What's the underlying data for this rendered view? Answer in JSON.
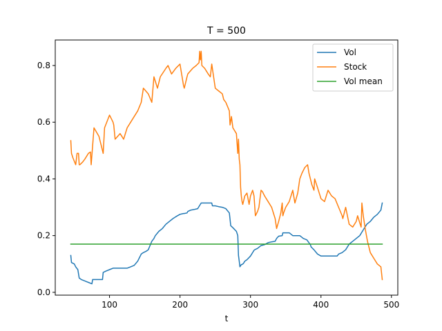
{
  "chart_data": {
    "type": "line",
    "title": "T = 500",
    "xlabel": "t",
    "ylabel": "",
    "xlim": [
      23,
      509
    ],
    "ylim": [
      -0.01,
      0.89
    ],
    "xticks": [
      100,
      200,
      300,
      400,
      500
    ],
    "yticks": [
      0.0,
      0.2,
      0.4,
      0.6,
      0.8
    ],
    "xtick_labels": [
      "100",
      "200",
      "300",
      "400",
      "500"
    ],
    "ytick_labels": [
      "0.0",
      "0.2",
      "0.4",
      "0.6",
      "0.8"
    ],
    "legend_position": "top-right",
    "grid": false,
    "series": [
      {
        "name": "Vol",
        "color": "#1f77b4",
        "x": [
          45,
          46,
          50,
          52,
          55,
          57,
          60,
          65,
          70,
          75,
          76,
          80,
          85,
          90,
          91,
          95,
          100,
          105,
          110,
          120,
          125,
          130,
          135,
          140,
          145,
          148,
          152,
          155,
          160,
          163,
          165,
          170,
          175,
          180,
          185,
          190,
          195,
          200,
          205,
          206,
          210,
          211,
          215,
          220,
          225,
          230,
          231,
          235,
          240,
          245,
          246,
          250,
          255,
          260,
          265,
          270,
          272,
          275,
          280,
          282,
          283,
          284,
          285,
          287,
          288,
          290,
          292,
          295,
          300,
          305,
          306,
          310,
          315,
          320,
          325,
          330,
          335,
          337,
          340,
          345,
          346,
          350,
          355,
          360,
          365,
          370,
          375,
          380,
          385,
          386,
          390,
          395,
          400,
          405,
          410,
          415,
          420,
          423,
          425,
          430,
          435,
          440,
          445,
          450,
          455,
          460,
          465,
          470,
          475,
          480,
          485,
          487
        ],
        "values": [
          0.13,
          0.105,
          0.1,
          0.09,
          0.08,
          0.05,
          0.045,
          0.04,
          0.035,
          0.03,
          0.045,
          0.045,
          0.045,
          0.045,
          0.07,
          0.075,
          0.08,
          0.085,
          0.085,
          0.085,
          0.085,
          0.09,
          0.095,
          0.11,
          0.135,
          0.14,
          0.145,
          0.15,
          0.18,
          0.19,
          0.2,
          0.215,
          0.225,
          0.24,
          0.25,
          0.26,
          0.268,
          0.275,
          0.278,
          0.278,
          0.28,
          0.285,
          0.29,
          0.292,
          0.295,
          0.315,
          0.315,
          0.315,
          0.315,
          0.315,
          0.305,
          0.305,
          0.302,
          0.3,
          0.295,
          0.28,
          0.235,
          0.228,
          0.215,
          0.2,
          0.13,
          0.11,
          0.09,
          0.098,
          0.098,
          0.102,
          0.11,
          0.115,
          0.128,
          0.148,
          0.15,
          0.155,
          0.165,
          0.168,
          0.175,
          0.178,
          0.18,
          0.19,
          0.198,
          0.2,
          0.21,
          0.21,
          0.21,
          0.2,
          0.2,
          0.2,
          0.19,
          0.185,
          0.168,
          0.16,
          0.15,
          0.135,
          0.128,
          0.128,
          0.128,
          0.128,
          0.128,
          0.128,
          0.135,
          0.14,
          0.15,
          0.17,
          0.18,
          0.19,
          0.2,
          0.22,
          0.24,
          0.25,
          0.265,
          0.275,
          0.29,
          0.315
        ]
      },
      {
        "name": "Stock",
        "color": "#ff7f0e",
        "x": [
          45,
          46,
          48,
          52,
          54,
          56,
          57,
          58,
          62,
          65,
          70,
          73,
          74,
          78,
          85,
          90,
          91,
          93,
          100,
          105,
          106,
          108,
          115,
          120,
          125,
          130,
          140,
          145,
          148,
          155,
          160,
          163,
          168,
          172,
          180,
          183,
          188,
          194,
          200,
          205,
          206,
          210,
          211,
          218,
          223,
          227,
          228,
          229,
          230,
          231,
          235,
          240,
          243,
          245,
          250,
          255,
          260,
          262,
          265,
          270,
          271,
          273,
          275,
          280,
          282,
          283,
          284,
          285,
          286,
          287,
          288,
          289,
          292,
          295,
          298,
          300,
          303,
          305,
          307,
          310,
          312,
          315,
          317,
          320,
          325,
          330,
          335,
          337,
          340,
          343,
          345,
          346,
          347,
          350,
          355,
          360,
          363,
          367,
          370,
          373,
          377,
          381,
          383,
          387,
          390,
          391,
          395,
          400,
          405,
          410,
          415,
          420,
          425,
          430,
          431,
          435,
          440,
          445,
          450,
          452,
          455,
          457,
          458,
          460,
          463,
          466,
          470,
          475,
          480,
          485,
          487
        ],
        "values": [
          0.535,
          0.49,
          0.475,
          0.45,
          0.49,
          0.49,
          0.45,
          0.45,
          0.46,
          0.47,
          0.49,
          0.495,
          0.45,
          0.58,
          0.55,
          0.5,
          0.49,
          0.58,
          0.625,
          0.6,
          0.59,
          0.54,
          0.56,
          0.54,
          0.58,
          0.6,
          0.64,
          0.67,
          0.72,
          0.7,
          0.67,
          0.76,
          0.72,
          0.76,
          0.79,
          0.8,
          0.77,
          0.79,
          0.805,
          0.73,
          0.72,
          0.76,
          0.77,
          0.79,
          0.8,
          0.81,
          0.85,
          0.82,
          0.85,
          0.8,
          0.79,
          0.77,
          0.76,
          0.805,
          0.72,
          0.71,
          0.7,
          0.68,
          0.67,
          0.64,
          0.59,
          0.62,
          0.58,
          0.56,
          0.49,
          0.54,
          0.47,
          0.45,
          0.37,
          0.34,
          0.32,
          0.31,
          0.34,
          0.35,
          0.31,
          0.34,
          0.36,
          0.34,
          0.27,
          0.285,
          0.3,
          0.36,
          0.355,
          0.34,
          0.32,
          0.3,
          0.26,
          0.225,
          0.25,
          0.28,
          0.315,
          0.27,
          0.28,
          0.3,
          0.32,
          0.36,
          0.315,
          0.35,
          0.4,
          0.42,
          0.44,
          0.45,
          0.42,
          0.38,
          0.36,
          0.4,
          0.37,
          0.33,
          0.32,
          0.36,
          0.34,
          0.33,
          0.3,
          0.27,
          0.26,
          0.3,
          0.24,
          0.23,
          0.25,
          0.27,
          0.245,
          0.23,
          0.315,
          0.27,
          0.22,
          0.18,
          0.14,
          0.12,
          0.1,
          0.09,
          0.045
        ]
      },
      {
        "name": "Vol mean",
        "color": "#2ca02c",
        "x": [
          45,
          487
        ],
        "values": [
          0.17,
          0.17
        ]
      }
    ]
  }
}
